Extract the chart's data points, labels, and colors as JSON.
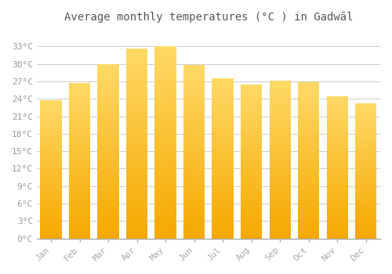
{
  "title": "Average monthly temperatures (°C ) in Gadwāl",
  "months": [
    "Jan",
    "Feb",
    "Mar",
    "Apr",
    "May",
    "Jun",
    "Jul",
    "Aug",
    "Sep",
    "Oct",
    "Nov",
    "Dec"
  ],
  "values": [
    23.8,
    26.7,
    30.0,
    32.6,
    33.1,
    29.8,
    27.5,
    26.4,
    27.1,
    26.9,
    24.5,
    23.2
  ],
  "bar_color_bottom": "#F5A800",
  "bar_color_top": "#FFD966",
  "background_color": "#FFFFFF",
  "grid_color": "#CCCCCC",
  "ylim": [
    0,
    36
  ],
  "yticks": [
    0,
    3,
    6,
    9,
    12,
    15,
    18,
    21,
    24,
    27,
    30,
    33
  ],
  "title_fontsize": 10,
  "tick_fontsize": 8,
  "font_color": "#999999"
}
